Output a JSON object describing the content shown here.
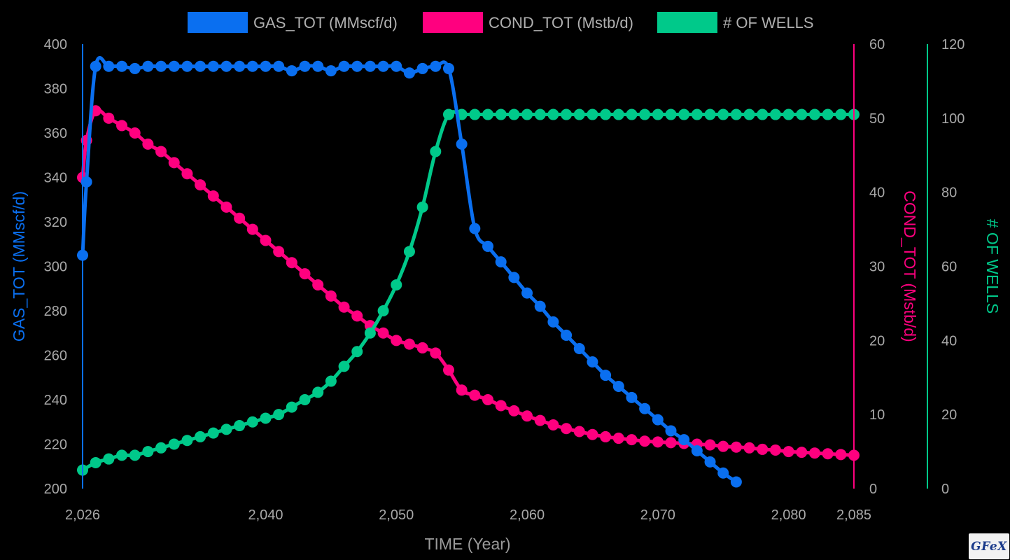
{
  "colors": {
    "gas": "#0a6ff0",
    "cond": "#ff007f",
    "wells": "#00c98a",
    "background": "#000000",
    "tick": "#a8a8a8"
  },
  "logo": {
    "text": "GFeX"
  },
  "chart_data": {
    "type": "line",
    "title": "",
    "legend": {
      "position": "top",
      "entries": [
        "GAS_TOT (MMscf/d)",
        "COND_TOT (Mstb/d)",
        "# OF WELLS"
      ]
    },
    "xlabel": "TIME (Year)",
    "xlim": [
      2026,
      2085
    ],
    "xticks": [
      2026,
      2040,
      2050,
      2060,
      2070,
      2080,
      2085
    ],
    "xtick_labels": [
      "2,026",
      "2,040",
      "2,050",
      "2,060",
      "2,070",
      "2,080",
      "2,085"
    ],
    "grid": false,
    "axes": [
      {
        "id": "gas",
        "side": "left",
        "title": "GAS_TOT (MMscf/d)",
        "min": 200,
        "max": 400,
        "ticks": [
          200,
          220,
          240,
          260,
          280,
          300,
          320,
          340,
          360,
          380,
          400
        ]
      },
      {
        "id": "cond",
        "side": "right",
        "title": "COND_TOT (Mstb/d)",
        "min": 0,
        "max": 60,
        "ticks": [
          0,
          10,
          20,
          30,
          40,
          50,
          60
        ]
      },
      {
        "id": "wells",
        "side": "right",
        "title": "# OF WELLS",
        "min": 0,
        "max": 120,
        "ticks": [
          0,
          20,
          40,
          60,
          80,
          100,
          120
        ]
      }
    ],
    "series": [
      {
        "name": "GAS_TOT (MMscf/d)",
        "axis": "gas",
        "color": "#0a6ff0",
        "x": [
          2026,
          2026.3,
          2027,
          2028,
          2029,
          2030,
          2031,
          2032,
          2033,
          2034,
          2035,
          2036,
          2037,
          2038,
          2039,
          2040,
          2041,
          2042,
          2043,
          2044,
          2045,
          2046,
          2047,
          2048,
          2049,
          2050,
          2051,
          2052,
          2053,
          2054,
          2055,
          2056,
          2057,
          2058,
          2059,
          2060,
          2061,
          2062,
          2063,
          2064,
          2065,
          2066,
          2067,
          2068,
          2069,
          2070,
          2071,
          2072,
          2073,
          2074,
          2075,
          2076
        ],
        "y": [
          305,
          338,
          390,
          390,
          390,
          389,
          390,
          390,
          390,
          390,
          390,
          390,
          390,
          390,
          390,
          390,
          390,
          388,
          390,
          390,
          388,
          390,
          390,
          390,
          390,
          390,
          387,
          389,
          390,
          389,
          355,
          317,
          309,
          302,
          295,
          288,
          282,
          275,
          269,
          263,
          257,
          251,
          246,
          241,
          236,
          231,
          226,
          222,
          217,
          212,
          207,
          203
        ]
      },
      {
        "name": "COND_TOT (Mstb/d)",
        "axis": "cond",
        "color": "#ff007f",
        "x": [
          2026,
          2026.3,
          2027,
          2028,
          2029,
          2030,
          2031,
          2032,
          2033,
          2034,
          2035,
          2036,
          2037,
          2038,
          2039,
          2040,
          2041,
          2042,
          2043,
          2044,
          2045,
          2046,
          2047,
          2048,
          2049,
          2050,
          2051,
          2052,
          2053,
          2054,
          2055,
          2056,
          2057,
          2058,
          2059,
          2060,
          2061,
          2062,
          2063,
          2064,
          2065,
          2066,
          2067,
          2068,
          2069,
          2070,
          2071,
          2072,
          2073,
          2074,
          2075,
          2076,
          2077,
          2078,
          2079,
          2080,
          2081,
          2082,
          2083,
          2084,
          2085
        ],
        "y": [
          42,
          47,
          51,
          50,
          49,
          48,
          46.5,
          45.5,
          44,
          42.5,
          41,
          39.5,
          38,
          36.5,
          35,
          33.5,
          32,
          30.5,
          29,
          27.5,
          26,
          24.5,
          23.3,
          22,
          21,
          20,
          19.5,
          19,
          18.3,
          16,
          13.3,
          12.6,
          12,
          11.2,
          10.5,
          9.8,
          9.2,
          8.6,
          8.1,
          7.7,
          7.3,
          7.0,
          6.8,
          6.6,
          6.4,
          6.3,
          6.2,
          6.1,
          6.0,
          5.9,
          5.7,
          5.6,
          5.5,
          5.3,
          5.2,
          5.0,
          4.9,
          4.8,
          4.7,
          4.6,
          4.5
        ]
      },
      {
        "name": "# OF WELLS",
        "axis": "wells",
        "color": "#00c98a",
        "x": [
          2026,
          2027,
          2028,
          2029,
          2030,
          2031,
          2032,
          2033,
          2034,
          2035,
          2036,
          2037,
          2038,
          2039,
          2040,
          2041,
          2042,
          2043,
          2044,
          2045,
          2046,
          2047,
          2048,
          2049,
          2050,
          2051,
          2052,
          2053,
          2054,
          2055,
          2056,
          2057,
          2058,
          2059,
          2060,
          2061,
          2062,
          2063,
          2064,
          2065,
          2066,
          2067,
          2068,
          2069,
          2070,
          2071,
          2072,
          2073,
          2074,
          2075,
          2076,
          2077,
          2078,
          2079,
          2080,
          2081,
          2082,
          2083,
          2084,
          2085
        ],
        "y": [
          5,
          7,
          8,
          9,
          9,
          10,
          11,
          12,
          13,
          14,
          15,
          16,
          17,
          18,
          19,
          20,
          22,
          24,
          26,
          29,
          33,
          37,
          42,
          48,
          55,
          64,
          76,
          91,
          101,
          101,
          101,
          101,
          101,
          101,
          101,
          101,
          101,
          101,
          101,
          101,
          101,
          101,
          101,
          101,
          101,
          101,
          101,
          101,
          101,
          101,
          101,
          101,
          101,
          101,
          101,
          101,
          101,
          101,
          101,
          101
        ]
      }
    ]
  }
}
